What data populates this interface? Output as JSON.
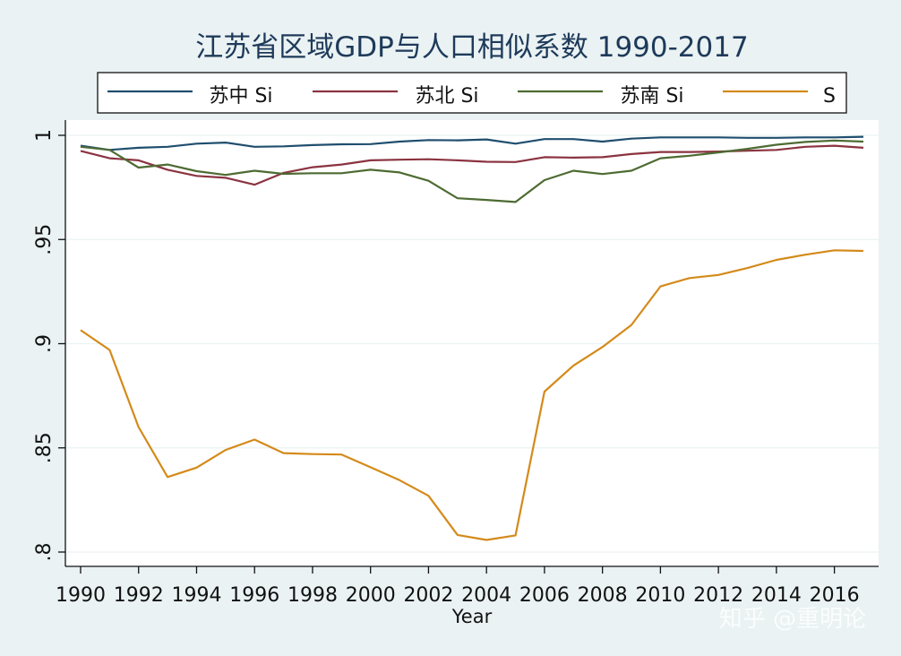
{
  "chart_data": {
    "type": "line",
    "title": "江苏省区域GDP与人口相似系数 1990-2017",
    "xlabel": "Year",
    "ylabel": "",
    "x": [
      1990,
      1991,
      1992,
      1993,
      1994,
      1995,
      1996,
      1997,
      1998,
      1999,
      2000,
      2001,
      2002,
      2003,
      2004,
      2005,
      2006,
      2007,
      2008,
      2009,
      2010,
      2011,
      2012,
      2013,
      2014,
      2015,
      2016,
      2017
    ],
    "xticks": [
      "1990",
      "1992",
      "1994",
      "1996",
      "1998",
      "2000",
      "2002",
      "2004",
      "2006",
      "2008",
      "2010",
      "2012",
      "2014",
      "2016"
    ],
    "yticks": [
      ".8",
      ".85",
      ".9",
      ".95",
      "1"
    ],
    "ylim": [
      0.8,
      1.0
    ],
    "legend_position": "top",
    "grid": true,
    "series": [
      {
        "name": "苏中 Si",
        "color": "#1f4e6e",
        "values": [
          0.995,
          0.993,
          0.994,
          0.9945,
          0.996,
          0.9965,
          0.9945,
          0.9947,
          0.9953,
          0.9957,
          0.9958,
          0.997,
          0.9977,
          0.9976,
          0.998,
          0.996,
          0.9982,
          0.9982,
          0.997,
          0.9984,
          0.999,
          0.999,
          0.999,
          0.9988,
          0.9988,
          0.999,
          0.999,
          0.9993
        ]
      },
      {
        "name": "苏北 Si",
        "color": "#8b3340",
        "values": [
          0.9925,
          0.989,
          0.988,
          0.9835,
          0.9805,
          0.9796,
          0.9763,
          0.982,
          0.9847,
          0.986,
          0.988,
          0.9883,
          0.9885,
          0.988,
          0.9873,
          0.9872,
          0.9895,
          0.9893,
          0.9895,
          0.991,
          0.992,
          0.992,
          0.9922,
          0.9926,
          0.993,
          0.9945,
          0.995,
          0.994
        ]
      },
      {
        "name": "苏南 Si",
        "color": "#4d6b32",
        "values": [
          0.9945,
          0.993,
          0.9845,
          0.986,
          0.9828,
          0.981,
          0.983,
          0.9815,
          0.9818,
          0.9818,
          0.9835,
          0.9822,
          0.9782,
          0.9698,
          0.969,
          0.968,
          0.9785,
          0.983,
          0.9814,
          0.983,
          0.989,
          0.9902,
          0.9918,
          0.9935,
          0.9955,
          0.9968,
          0.9975,
          0.997
        ]
      },
      {
        "name": "S",
        "color": "#d48a1a",
        "values": [
          0.9065,
          0.897,
          0.86,
          0.836,
          0.8405,
          0.849,
          0.854,
          0.8475,
          0.847,
          0.8468,
          0.8407,
          0.8345,
          0.827,
          0.8082,
          0.8058,
          0.808,
          0.877,
          0.8895,
          0.8984,
          0.909,
          0.9275,
          0.9315,
          0.933,
          0.9363,
          0.9402,
          0.9427,
          0.9448,
          0.9445
        ]
      }
    ]
  },
  "watermark": "知乎 @重明论"
}
